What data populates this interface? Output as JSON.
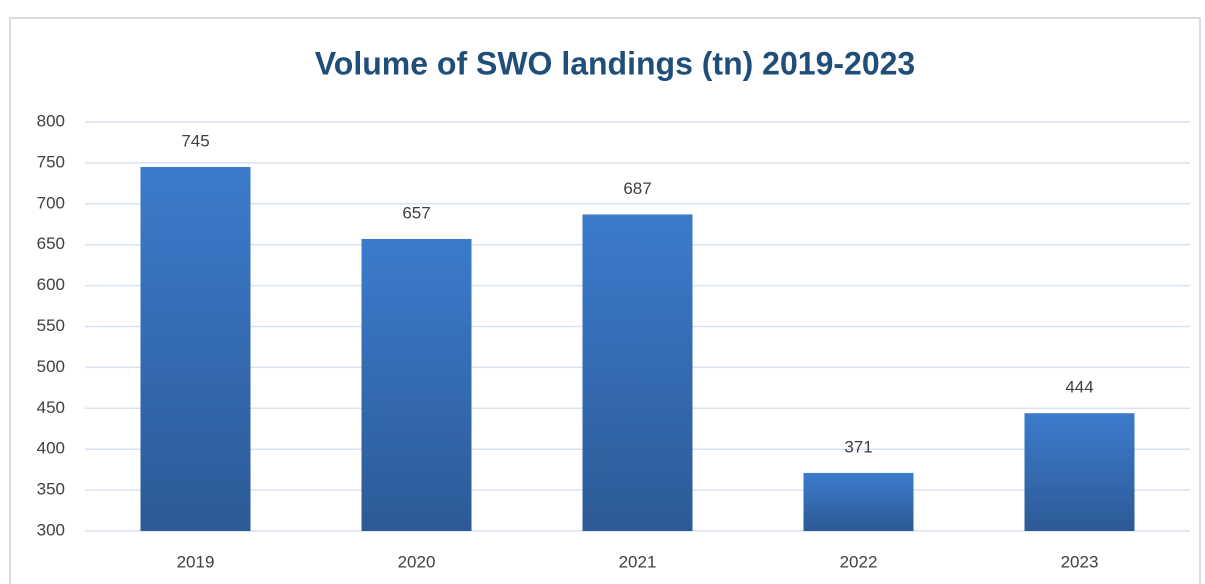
{
  "chart_data": {
    "type": "bar",
    "title": "Volume of SWO landings (tn) 2019-2023",
    "categories": [
      "2019",
      "2020",
      "2021",
      "2022",
      "2023"
    ],
    "values": [
      745,
      657,
      687,
      371,
      444
    ],
    "color": "#3b7bcc",
    "ylim": [
      300,
      800
    ],
    "yticks": [
      300,
      350,
      400,
      450,
      500,
      550,
      600,
      650,
      700,
      750,
      800
    ],
    "grid": true
  }
}
